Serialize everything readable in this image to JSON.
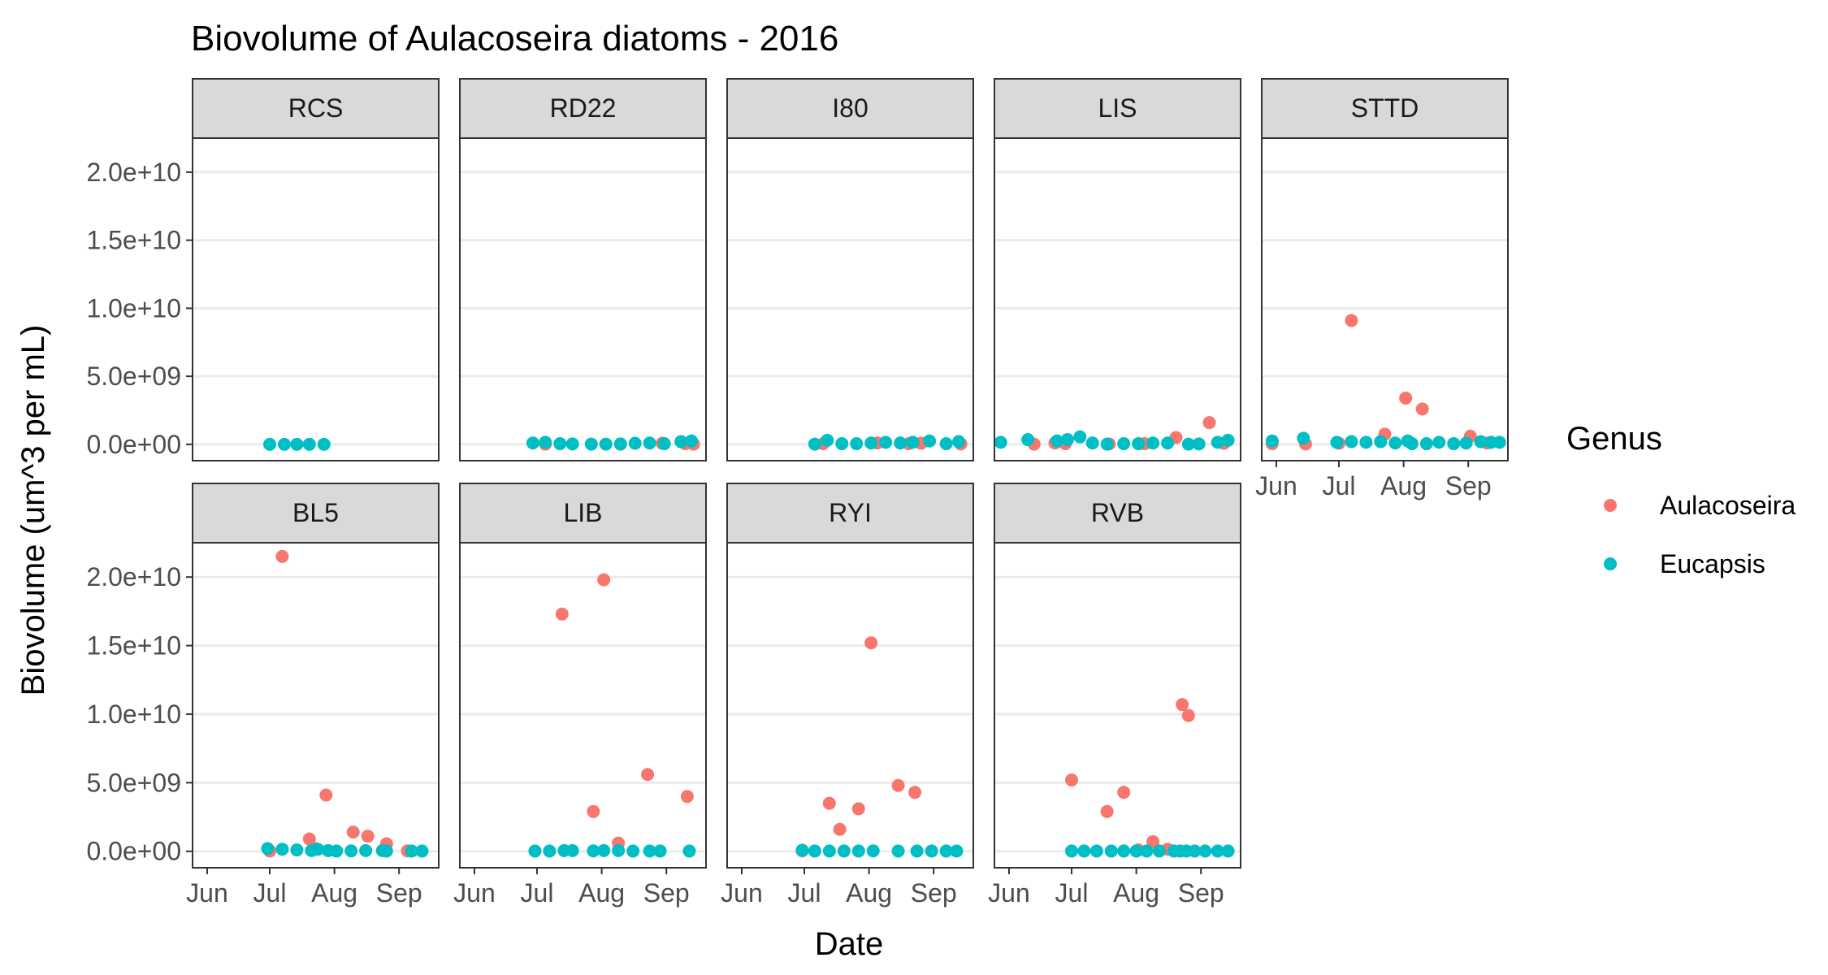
{
  "chart_data": {
    "type": "scatter",
    "title": "Biovolume of Aulacoseira diatoms - 2016",
    "xlabel": "Date",
    "ylabel": "Biovolume (um^3 per mL)",
    "xlim": [
      "2016-05-25",
      "2016-09-20"
    ],
    "ylim": [
      -1200000000,
      22500000000
    ],
    "x_ticks": [
      {
        "date": "2016-06-01",
        "label": "Jun"
      },
      {
        "date": "2016-07-01",
        "label": "Jul"
      },
      {
        "date": "2016-08-01",
        "label": "Aug"
      },
      {
        "date": "2016-09-01",
        "label": "Sep"
      }
    ],
    "y_ticks": [
      {
        "value": 0,
        "label": "0.0e+00"
      },
      {
        "value": 5000000000,
        "label": "5.0e+09"
      },
      {
        "value": 10000000000,
        "label": "1.0e+10"
      },
      {
        "value": 15000000000,
        "label": "1.5e+10"
      },
      {
        "value": 20000000000,
        "label": "2.0e+10"
      }
    ],
    "grid": true,
    "facet_layout": {
      "rows": 2,
      "cols": 5
    },
    "legend": {
      "title": "Genus",
      "position": "right",
      "entries": [
        {
          "name": "Aulacoseira",
          "color": "#F8766D"
        },
        {
          "name": "Eucapsis",
          "color": "#00BFC4"
        }
      ]
    },
    "colors": {
      "Aulacoseira": "#F8766D",
      "Eucapsis": "#00BFC4"
    },
    "panels": [
      {
        "label": "RCS",
        "x_axis_shown": false,
        "series": [
          {
            "name": "Eucapsis",
            "points": [
              [
                "2016-07-01",
                0
              ],
              [
                "2016-07-08",
                0
              ],
              [
                "2016-07-14",
                0
              ],
              [
                "2016-07-20",
                0
              ],
              [
                "2016-07-27",
                0
              ]
            ]
          }
        ]
      },
      {
        "label": "RD22",
        "x_axis_shown": false,
        "series": [
          {
            "name": "Aulacoseira",
            "points": [
              [
                "2016-07-05",
                20000000
              ],
              [
                "2016-08-10",
                10000000
              ],
              [
                "2016-08-30",
                80000000
              ],
              [
                "2016-09-10",
                50000000
              ],
              [
                "2016-09-14",
                20000000
              ]
            ]
          },
          {
            "name": "Eucapsis",
            "points": [
              [
                "2016-06-29",
                100000000
              ],
              [
                "2016-07-05",
                150000000
              ],
              [
                "2016-07-12",
                50000000
              ],
              [
                "2016-07-18",
                30000000
              ],
              [
                "2016-07-27",
                20000000
              ],
              [
                "2016-08-03",
                20000000
              ],
              [
                "2016-08-10",
                30000000
              ],
              [
                "2016-08-17",
                80000000
              ],
              [
                "2016-08-24",
                100000000
              ],
              [
                "2016-08-31",
                50000000
              ],
              [
                "2016-09-08",
                200000000
              ],
              [
                "2016-09-13",
                250000000
              ]
            ]
          }
        ]
      },
      {
        "label": "I80",
        "x_axis_shown": false,
        "series": [
          {
            "name": "Aulacoseira",
            "points": [
              [
                "2016-07-10",
                50000000
              ],
              [
                "2016-08-05",
                100000000
              ],
              [
                "2016-08-20",
                50000000
              ],
              [
                "2016-08-26",
                80000000
              ],
              [
                "2016-09-14",
                30000000
              ]
            ]
          },
          {
            "name": "Eucapsis",
            "points": [
              [
                "2016-07-06",
                20000000
              ],
              [
                "2016-07-12",
                300000000
              ],
              [
                "2016-07-19",
                50000000
              ],
              [
                "2016-07-26",
                50000000
              ],
              [
                "2016-08-02",
                100000000
              ],
              [
                "2016-08-09",
                150000000
              ],
              [
                "2016-08-16",
                100000000
              ],
              [
                "2016-08-22",
                150000000
              ],
              [
                "2016-08-30",
                250000000
              ],
              [
                "2016-09-07",
                50000000
              ],
              [
                "2016-09-13",
                200000000
              ]
            ]
          }
        ]
      },
      {
        "label": "LIS",
        "x_axis_shown": false,
        "series": [
          {
            "name": "Aulacoseira",
            "points": [
              [
                "2016-06-13",
                20000000
              ],
              [
                "2016-06-23",
                100000000
              ],
              [
                "2016-06-28",
                50000000
              ],
              [
                "2016-07-19",
                30000000
              ],
              [
                "2016-08-05",
                50000000
              ],
              [
                "2016-08-20",
                500000000
              ],
              [
                "2016-09-05",
                1600000000
              ],
              [
                "2016-09-12",
                80000000
              ]
            ]
          },
          {
            "name": "Eucapsis",
            "points": [
              [
                "2016-05-28",
                150000000
              ],
              [
                "2016-06-10",
                350000000
              ],
              [
                "2016-06-24",
                250000000
              ],
              [
                "2016-06-29",
                350000000
              ],
              [
                "2016-07-05",
                550000000
              ],
              [
                "2016-07-11",
                100000000
              ],
              [
                "2016-07-18",
                20000000
              ],
              [
                "2016-07-26",
                50000000
              ],
              [
                "2016-08-02",
                50000000
              ],
              [
                "2016-08-09",
                100000000
              ],
              [
                "2016-08-16",
                100000000
              ],
              [
                "2016-08-26",
                20000000
              ],
              [
                "2016-08-31",
                30000000
              ],
              [
                "2016-09-09",
                150000000
              ],
              [
                "2016-09-14",
                300000000
              ]
            ]
          }
        ]
      },
      {
        "label": "STTD",
        "x_axis_shown": true,
        "series": [
          {
            "name": "Aulacoseira",
            "points": [
              [
                "2016-05-30",
                50000000
              ],
              [
                "2016-06-15",
                30000000
              ],
              [
                "2016-07-01",
                80000000
              ],
              [
                "2016-07-07",
                9100000000
              ],
              [
                "2016-07-23",
                750000000
              ],
              [
                "2016-08-02",
                3400000000
              ],
              [
                "2016-08-10",
                2600000000
              ],
              [
                "2016-09-02",
                600000000
              ],
              [
                "2016-09-10",
                100000000
              ]
            ]
          },
          {
            "name": "Eucapsis",
            "points": [
              [
                "2016-05-30",
                250000000
              ],
              [
                "2016-06-14",
                450000000
              ],
              [
                "2016-06-30",
                150000000
              ],
              [
                "2016-07-07",
                200000000
              ],
              [
                "2016-07-14",
                150000000
              ],
              [
                "2016-07-21",
                200000000
              ],
              [
                "2016-07-28",
                100000000
              ],
              [
                "2016-08-03",
                250000000
              ],
              [
                "2016-08-05",
                50000000
              ],
              [
                "2016-08-12",
                50000000
              ],
              [
                "2016-08-18",
                150000000
              ],
              [
                "2016-08-25",
                50000000
              ],
              [
                "2016-08-31",
                100000000
              ],
              [
                "2016-09-07",
                200000000
              ],
              [
                "2016-09-12",
                150000000
              ],
              [
                "2016-09-16",
                150000000
              ]
            ]
          }
        ]
      },
      {
        "label": "BL5",
        "x_axis_shown": true,
        "series": [
          {
            "name": "Aulacoseira",
            "points": [
              [
                "2016-07-01",
                20000000
              ],
              [
                "2016-07-07",
                21500000000
              ],
              [
                "2016-07-20",
                900000000
              ],
              [
                "2016-07-23",
                200000000
              ],
              [
                "2016-07-28",
                4100000000
              ],
              [
                "2016-08-10",
                1400000000
              ],
              [
                "2016-08-17",
                1100000000
              ],
              [
                "2016-08-26",
                550000000
              ],
              [
                "2016-09-05",
                30000000
              ]
            ]
          },
          {
            "name": "Eucapsis",
            "points": [
              [
                "2016-06-30",
                200000000
              ],
              [
                "2016-07-07",
                150000000
              ],
              [
                "2016-07-14",
                100000000
              ],
              [
                "2016-07-21",
                50000000
              ],
              [
                "2016-07-24",
                150000000
              ],
              [
                "2016-07-29",
                50000000
              ],
              [
                "2016-08-02",
                20000000
              ],
              [
                "2016-08-09",
                30000000
              ],
              [
                "2016-08-16",
                50000000
              ],
              [
                "2016-08-24",
                50000000
              ],
              [
                "2016-08-26",
                20000000
              ],
              [
                "2016-09-07",
                20000000
              ],
              [
                "2016-09-12",
                20000000
              ]
            ]
          }
        ]
      },
      {
        "label": "LIB",
        "x_axis_shown": true,
        "series": [
          {
            "name": "Aulacoseira",
            "points": [
              [
                "2016-07-13",
                17300000000
              ],
              [
                "2016-07-28",
                2900000000
              ],
              [
                "2016-08-02",
                19800000000
              ],
              [
                "2016-08-09",
                600000000
              ],
              [
                "2016-08-23",
                5600000000
              ],
              [
                "2016-09-11",
                4000000000
              ]
            ]
          },
          {
            "name": "Eucapsis",
            "points": [
              [
                "2016-06-30",
                20000000
              ],
              [
                "2016-07-07",
                20000000
              ],
              [
                "2016-07-14",
                50000000
              ],
              [
                "2016-07-18",
                50000000
              ],
              [
                "2016-07-28",
                30000000
              ],
              [
                "2016-08-02",
                50000000
              ],
              [
                "2016-08-09",
                50000000
              ],
              [
                "2016-08-16",
                20000000
              ],
              [
                "2016-08-24",
                20000000
              ],
              [
                "2016-08-29",
                20000000
              ],
              [
                "2016-09-12",
                20000000
              ]
            ]
          }
        ]
      },
      {
        "label": "RYI",
        "x_axis_shown": true,
        "series": [
          {
            "name": "Aulacoseira",
            "points": [
              [
                "2016-06-30",
                30000000
              ],
              [
                "2016-07-13",
                3500000000
              ],
              [
                "2016-07-18",
                1600000000
              ],
              [
                "2016-07-27",
                3100000000
              ],
              [
                "2016-08-02",
                15200000000
              ],
              [
                "2016-08-15",
                4800000000
              ],
              [
                "2016-08-23",
                4300000000
              ]
            ]
          },
          {
            "name": "Eucapsis",
            "points": [
              [
                "2016-06-30",
                80000000
              ],
              [
                "2016-07-06",
                20000000
              ],
              [
                "2016-07-13",
                20000000
              ],
              [
                "2016-07-20",
                20000000
              ],
              [
                "2016-07-27",
                20000000
              ],
              [
                "2016-08-03",
                30000000
              ],
              [
                "2016-08-15",
                20000000
              ],
              [
                "2016-08-24",
                20000000
              ],
              [
                "2016-08-31",
                20000000
              ],
              [
                "2016-09-07",
                20000000
              ],
              [
                "2016-09-12",
                20000000
              ]
            ]
          }
        ]
      },
      {
        "label": "RVB",
        "x_axis_shown": true,
        "series": [
          {
            "name": "Aulacoseira",
            "points": [
              [
                "2016-07-01",
                5200000000
              ],
              [
                "2016-07-18",
                2900000000
              ],
              [
                "2016-07-26",
                4300000000
              ],
              [
                "2016-08-02",
                100000000
              ],
              [
                "2016-08-09",
                700000000
              ],
              [
                "2016-08-16",
                150000000
              ],
              [
                "2016-08-23",
                10700000000
              ],
              [
                "2016-08-26",
                9900000000
              ]
            ]
          },
          {
            "name": "Eucapsis",
            "points": [
              [
                "2016-07-01",
                20000000
              ],
              [
                "2016-07-07",
                20000000
              ],
              [
                "2016-07-13",
                20000000
              ],
              [
                "2016-07-20",
                20000000
              ],
              [
                "2016-07-26",
                20000000
              ],
              [
                "2016-08-01",
                20000000
              ],
              [
                "2016-08-06",
                20000000
              ],
              [
                "2016-08-12",
                20000000
              ],
              [
                "2016-08-19",
                20000000
              ],
              [
                "2016-08-22",
                20000000
              ],
              [
                "2016-08-25",
                20000000
              ],
              [
                "2016-08-29",
                20000000
              ],
              [
                "2016-09-03",
                20000000
              ],
              [
                "2016-09-09",
                20000000
              ],
              [
                "2016-09-14",
                20000000
              ]
            ]
          }
        ]
      }
    ]
  }
}
